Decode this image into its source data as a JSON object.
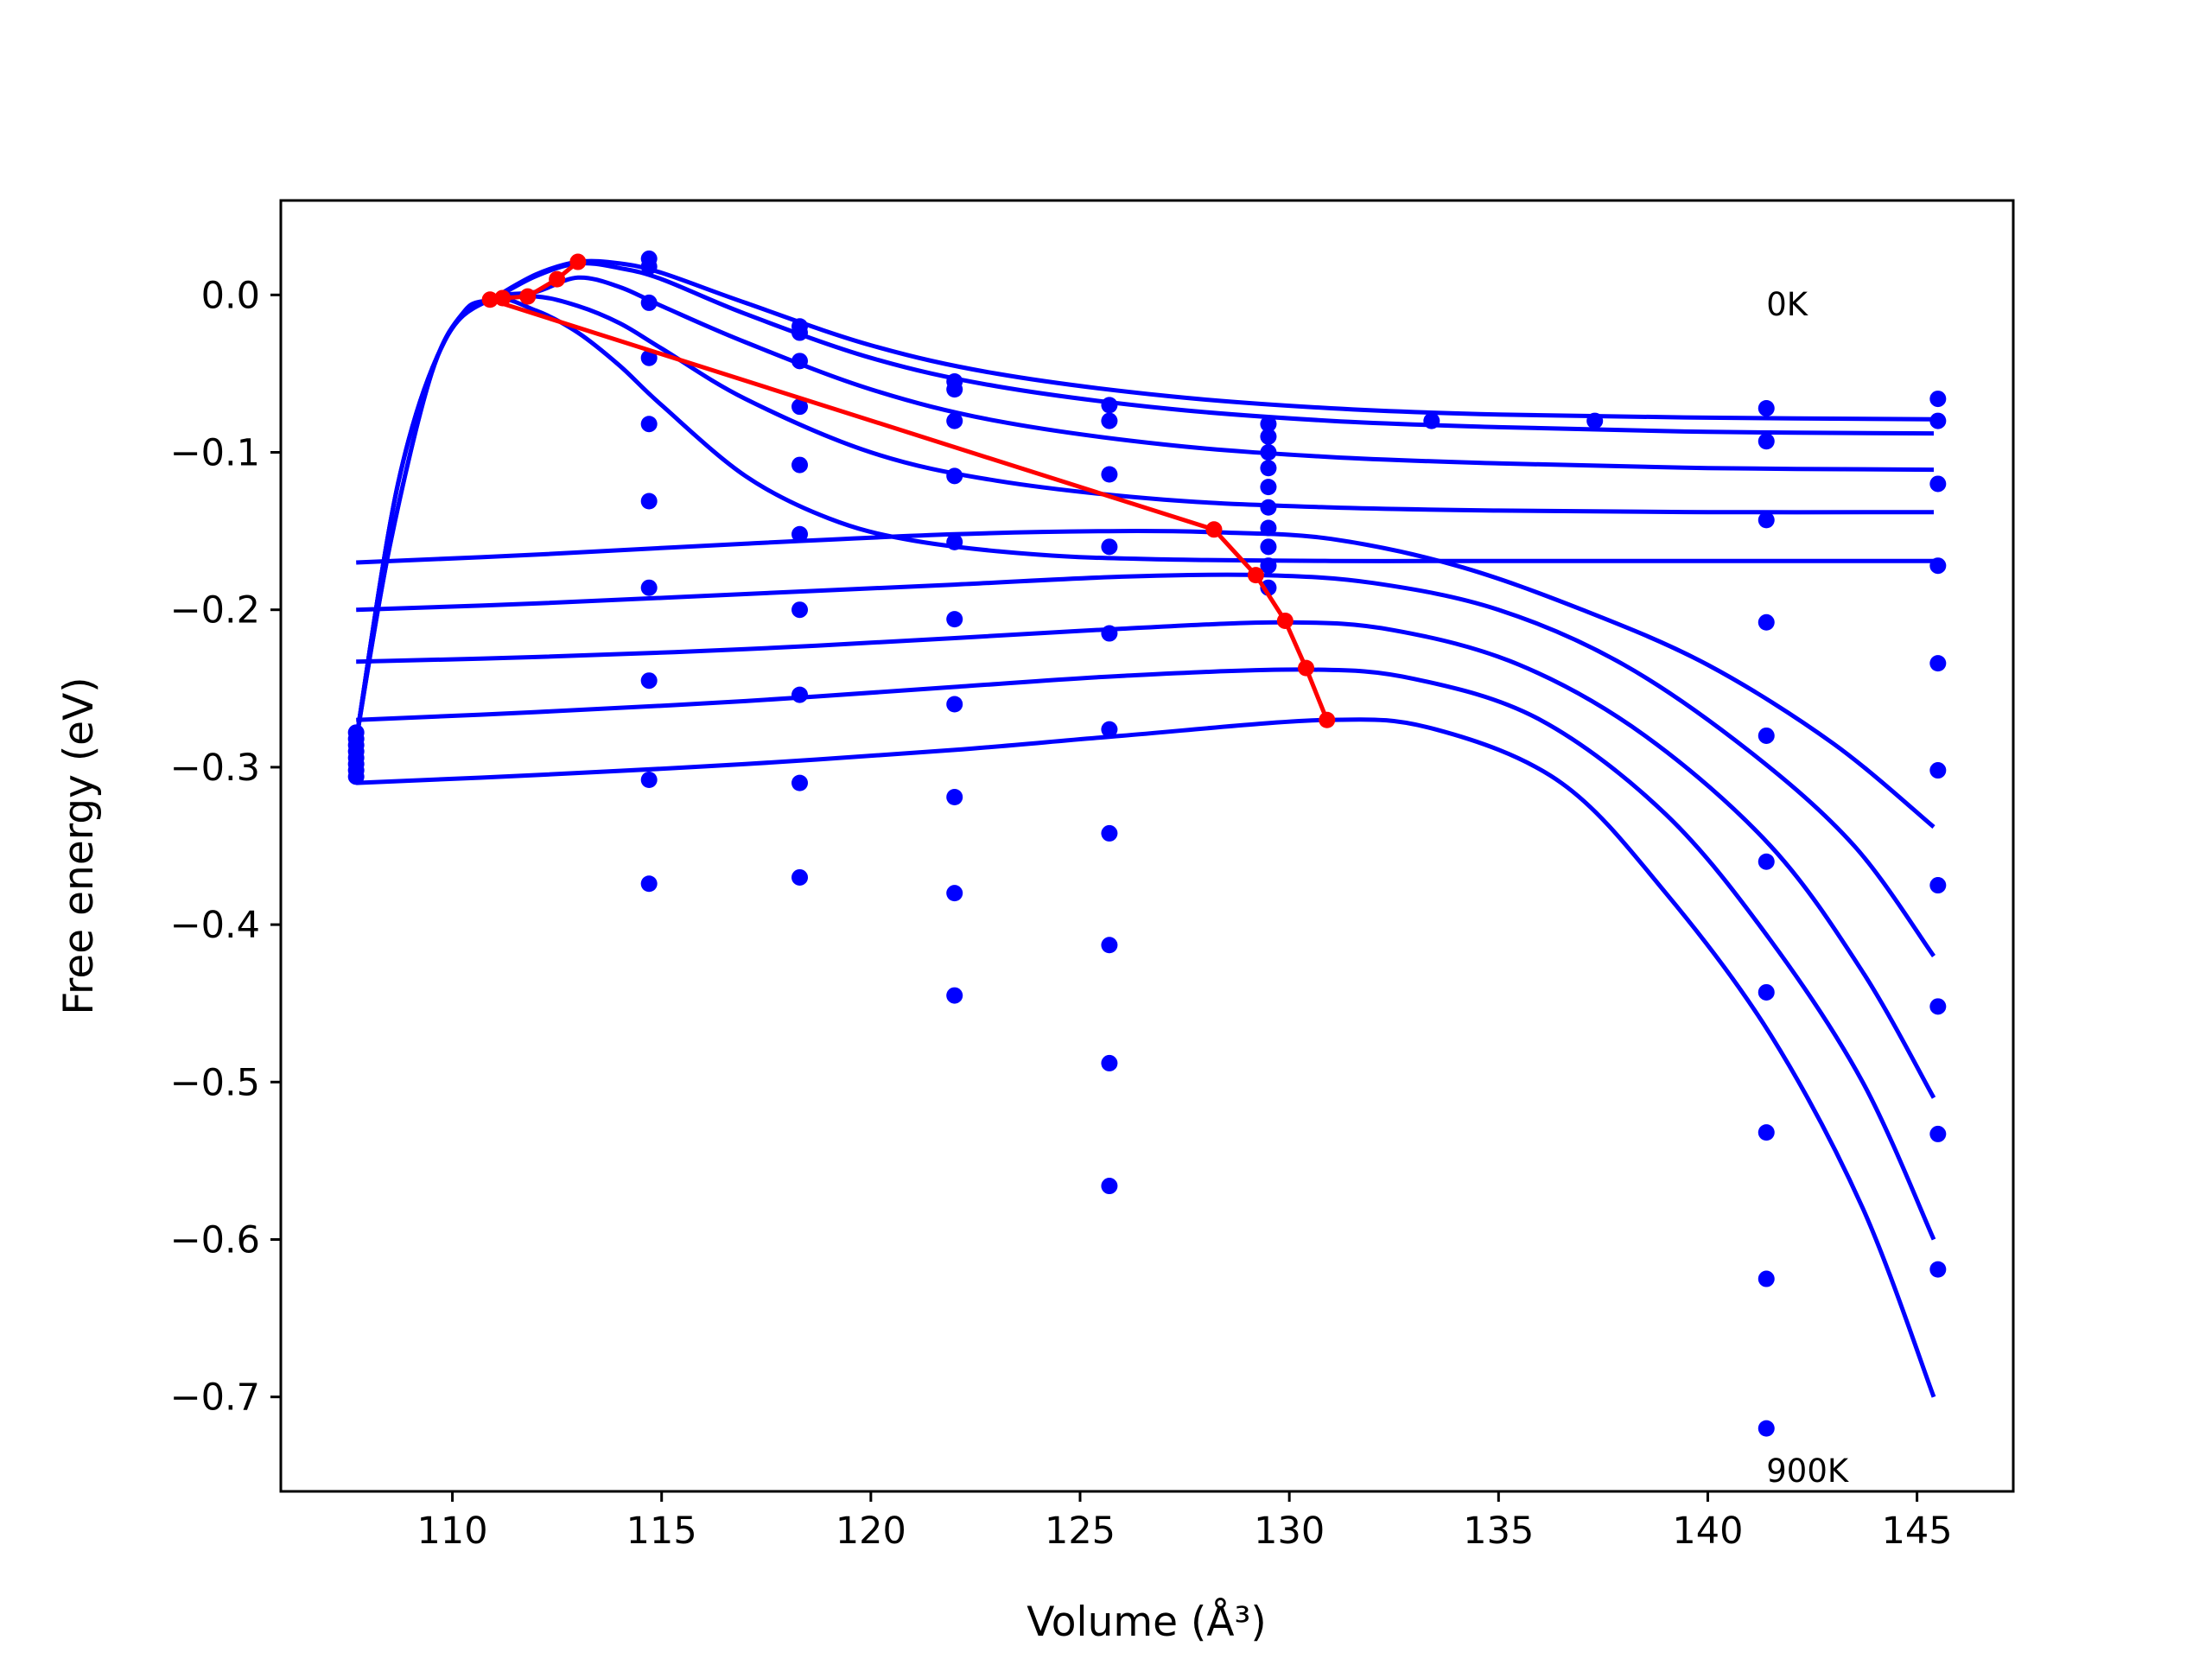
{
  "chart_data": {
    "type": "line",
    "xlabel": "Volume (Å³)",
    "ylabel": "Free energy (eV)",
    "xlim": [
      105.9,
      147.3
    ],
    "ylim": [
      -0.76,
      0.06
    ],
    "xticks": [
      110,
      115,
      120,
      125,
      130,
      135,
      140,
      145
    ],
    "xtick_labels": [
      "110",
      "115",
      "120",
      "125",
      "130",
      "135",
      "140",
      "145"
    ],
    "yticks": [
      0.0,
      -0.1,
      -0.2,
      -0.3,
      -0.4,
      -0.5,
      -0.6,
      -0.7
    ],
    "ytick_labels": [
      "0.0",
      "−0.1",
      "−0.2",
      "−0.3",
      "−0.4",
      "−0.5",
      "−0.6",
      "−0.7"
    ],
    "grid": false,
    "annotations": [
      {
        "text": "0K",
        "x": 141.4,
        "y": -0.013
      },
      {
        "text": "900K",
        "x": 141.4,
        "y": -0.754
      }
    ],
    "colors": {
      "curves": "#0000ff",
      "points": "#0000ff",
      "path": "#ff0000",
      "frame": "#000000"
    },
    "fitted_curves": [
      {
        "x": [
          107.7,
          108.5,
          109.5,
          110.3,
          110.9,
          112,
          113,
          114,
          115,
          117,
          120,
          123,
          127,
          131,
          135,
          140,
          145.4
        ],
        "y": [
          -0.283,
          -0.16,
          -0.05,
          -0.01,
          -0.003,
          0.013,
          0.021,
          0.02,
          0.014,
          -0.005,
          -0.032,
          -0.05,
          -0.064,
          -0.072,
          -0.076,
          -0.078,
          -0.079
        ]
      },
      {
        "x": [
          107.7,
          108.5,
          109.5,
          110.3,
          111,
          112,
          113,
          114,
          115,
          117,
          120,
          123,
          127,
          131,
          135,
          140,
          145.4
        ],
        "y": [
          -0.283,
          -0.16,
          -0.05,
          -0.01,
          -0.002,
          0.012,
          0.02,
          0.017,
          0.01,
          -0.012,
          -0.04,
          -0.058,
          -0.072,
          -0.08,
          -0.084,
          -0.087,
          -0.088
        ]
      },
      {
        "x": [
          107.7,
          108.7,
          109.8,
          110.9,
          112,
          113,
          114,
          115,
          117,
          120,
          123,
          127,
          131,
          135,
          140,
          145.4
        ],
        "y": [
          -0.283,
          -0.12,
          -0.03,
          -0.003,
          0.002,
          0.011,
          0.005,
          -0.007,
          -0.03,
          -0.06,
          -0.08,
          -0.095,
          -0.103,
          -0.107,
          -0.11,
          -0.111
        ]
      },
      {
        "x": [
          107.7,
          108.7,
          109.8,
          110.9,
          112,
          113,
          114,
          115,
          117,
          120,
          123,
          127,
          131,
          135,
          140,
          145.4
        ],
        "y": [
          -0.283,
          -0.12,
          -0.03,
          -0.003,
          -0.001,
          -0.007,
          -0.018,
          -0.034,
          -0.066,
          -0.1,
          -0.118,
          -0.13,
          -0.135,
          -0.137,
          -0.138,
          -0.138
        ]
      },
      {
        "x": [
          107.7,
          108.7,
          109.8,
          110.9,
          112,
          113,
          114,
          115,
          117,
          119,
          121,
          124,
          127,
          131,
          135,
          140,
          145.4
        ],
        "y": [
          -0.283,
          -0.12,
          -0.03,
          -0.003,
          -0.01,
          -0.024,
          -0.045,
          -0.07,
          -0.115,
          -0.142,
          -0.156,
          -0.165,
          -0.168,
          -0.169,
          -0.169,
          -0.169,
          -0.169
        ]
      },
      {
        "x": [
          107.7,
          112,
          117,
          122,
          126,
          128.5,
          131,
          134,
          137,
          140,
          143,
          145.4
        ],
        "y": [
          -0.17,
          -0.165,
          -0.158,
          -0.152,
          -0.15,
          -0.151,
          -0.155,
          -0.172,
          -0.2,
          -0.235,
          -0.285,
          -0.338
        ]
      },
      {
        "x": [
          107.7,
          112,
          117,
          122,
          126,
          129.3,
          132,
          135,
          138,
          141,
          143.5,
          145.4
        ],
        "y": [
          -0.2,
          -0.196,
          -0.19,
          -0.184,
          -0.179,
          -0.178,
          -0.183,
          -0.2,
          -0.235,
          -0.29,
          -0.35,
          -0.42
        ]
      },
      {
        "x": [
          107.7,
          112,
          117,
          122,
          126,
          129.9,
          132.5,
          135.5,
          138.5,
          141.5,
          143.7,
          145.4
        ],
        "y": [
          -0.233,
          -0.23,
          -0.225,
          -0.218,
          -0.212,
          -0.208,
          -0.213,
          -0.235,
          -0.28,
          -0.35,
          -0.43,
          -0.51
        ]
      },
      {
        "x": [
          107.7,
          112,
          117,
          122,
          126,
          130.4,
          133,
          136,
          139,
          141.5,
          143.7,
          145.4
        ],
        "y": [
          -0.27,
          -0.265,
          -0.258,
          -0.249,
          -0.242,
          -0.238,
          -0.244,
          -0.27,
          -0.33,
          -0.41,
          -0.5,
          -0.6
        ]
      },
      {
        "x": [
          107.7,
          112,
          117,
          122,
          126,
          130.9,
          133.5,
          136.5,
          139,
          141.5,
          143.7,
          145.4
        ],
        "y": [
          -0.31,
          -0.305,
          -0.298,
          -0.289,
          -0.28,
          -0.27,
          -0.276,
          -0.31,
          -0.38,
          -0.47,
          -0.58,
          -0.7
        ]
      }
    ],
    "data_points": {
      "x": [
        107.7,
        107.7,
        107.7,
        107.7,
        107.7,
        107.7,
        107.7,
        107.7,
        114.7,
        114.7,
        114.7,
        114.7,
        114.7,
        114.7,
        114.7,
        114.7,
        114.7,
        114.7,
        118.3,
        118.3,
        118.3,
        118.3,
        118.3,
        118.3,
        118.3,
        118.3,
        118.3,
        118.3,
        122.0,
        122.0,
        122.0,
        122.0,
        122.0,
        122.0,
        122.0,
        122.0,
        122.0,
        122.0,
        125.7,
        125.7,
        125.7,
        125.7,
        125.7,
        125.7,
        125.7,
        125.7,
        125.7,
        125.7,
        129.5,
        129.5,
        129.5,
        129.5,
        129.5,
        129.5,
        129.5,
        129.5,
        129.5,
        129.5,
        133.4,
        137.3,
        141.4,
        141.4,
        141.4,
        141.4,
        141.4,
        141.4,
        141.4,
        141.4,
        141.4,
        141.4,
        145.5,
        145.5,
        145.5,
        145.5,
        145.5,
        145.5,
        145.5,
        145.5,
        145.5,
        145.5
      ],
      "y": [
        -0.278,
        -0.282,
        -0.286,
        -0.29,
        -0.294,
        -0.298,
        -0.302,
        -0.306,
        0.023,
        0.018,
        -0.005,
        -0.04,
        -0.082,
        -0.131,
        -0.186,
        -0.245,
        -0.308,
        -0.374,
        -0.02,
        -0.024,
        -0.042,
        -0.071,
        -0.108,
        -0.152,
        -0.2,
        -0.254,
        -0.31,
        -0.37,
        -0.055,
        -0.06,
        -0.08,
        -0.115,
        -0.157,
        -0.206,
        -0.26,
        -0.319,
        -0.38,
        -0.445,
        -0.07,
        -0.08,
        -0.114,
        -0.16,
        -0.215,
        -0.276,
        -0.342,
        -0.413,
        -0.488,
        -0.566,
        -0.082,
        -0.09,
        -0.1,
        -0.11,
        -0.122,
        -0.135,
        -0.148,
        -0.16,
        -0.172,
        -0.186,
        -0.08,
        -0.08,
        -0.072,
        -0.093,
        -0.143,
        -0.208,
        -0.28,
        -0.36,
        -0.443,
        -0.532,
        -0.625,
        -0.72,
        -0.066,
        -0.08,
        -0.12,
        -0.172,
        -0.234,
        -0.302,
        -0.375,
        -0.452,
        -0.533,
        -0.619
      ]
    },
    "equilibrium_path": {
      "x": [
        110.9,
        111.2,
        111.8,
        112.5,
        113.0,
        128.2,
        129.2,
        129.9,
        130.4,
        130.9
      ],
      "y": [
        -0.003,
        -0.002,
        -0.001,
        0.01,
        0.021,
        -0.149,
        -0.178,
        -0.207,
        -0.237,
        -0.27
      ],
      "order": [
        4,
        3,
        2,
        1,
        0,
        5,
        6,
        7,
        8,
        9
      ]
    }
  }
}
